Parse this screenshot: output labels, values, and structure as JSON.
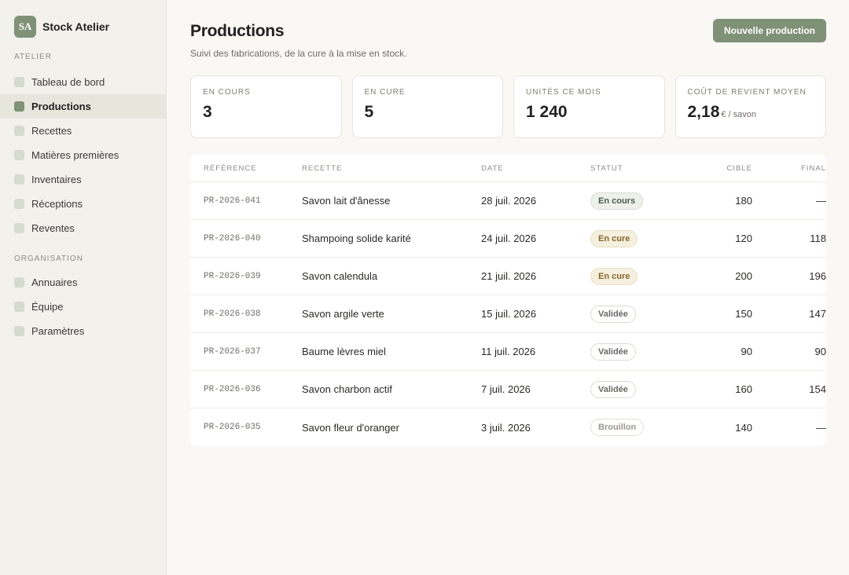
{
  "brand": {
    "logo": "SA",
    "name": "Stock Atelier"
  },
  "sidebar": {
    "sections": [
      {
        "label": "ATELIER",
        "items": [
          {
            "label": "Tableau de bord",
            "active": false
          },
          {
            "label": "Productions",
            "active": true
          },
          {
            "label": "Recettes",
            "active": false
          },
          {
            "label": "Matières premières",
            "active": false
          },
          {
            "label": "Inventaires",
            "active": false
          },
          {
            "label": "Réceptions",
            "active": false
          },
          {
            "label": "Reventes",
            "active": false
          }
        ]
      },
      {
        "label": "ORGANISATION",
        "items": [
          {
            "label": "Annuaires",
            "active": false
          },
          {
            "label": "Équipe",
            "active": false
          },
          {
            "label": "Paramètres",
            "active": false
          }
        ]
      }
    ]
  },
  "header": {
    "title": "Productions",
    "subtitle": "Suivi des fabrications, de la cure à la mise en stock.",
    "new_button": "Nouvelle production"
  },
  "stats": [
    {
      "label": "EN COURS",
      "value": "3",
      "unit": ""
    },
    {
      "label": "EN CURE",
      "value": "5",
      "unit": ""
    },
    {
      "label": "UNITÉS CE MOIS",
      "value": "1 240",
      "unit": ""
    },
    {
      "label": "COÛT DE REVIENT MOYEN",
      "value": "2,18",
      "unit": "€ / savon"
    }
  ],
  "table": {
    "headers": {
      "reference": "RÉFÉRENCE",
      "recette": "RECETTE",
      "date": "DATE",
      "statut": "STATUT",
      "cible": "CIBLE",
      "final": "FINAL"
    },
    "rows": [
      {
        "reference": "PR-2026-041",
        "recette": "Savon lait d'ânesse",
        "date": "28 juil. 2026",
        "statut": "En cours",
        "status_kind": "encours",
        "cible": "180",
        "final": "—"
      },
      {
        "reference": "PR-2026-040",
        "recette": "Shampoing solide karité",
        "date": "24 juil. 2026",
        "statut": "En cure",
        "status_kind": "encure",
        "cible": "120",
        "final": "118"
      },
      {
        "reference": "PR-2026-039",
        "recette": "Savon calendula",
        "date": "21 juil. 2026",
        "statut": "En cure",
        "status_kind": "encure",
        "cible": "200",
        "final": "196"
      },
      {
        "reference": "PR-2026-038",
        "recette": "Savon argile verte",
        "date": "15 juil. 2026",
        "statut": "Validée",
        "status_kind": "validee",
        "cible": "150",
        "final": "147"
      },
      {
        "reference": "PR-2026-037",
        "recette": "Baume lèvres miel",
        "date": "11 juil. 2026",
        "statut": "Validée",
        "status_kind": "validee",
        "cible": "90",
        "final": "90"
      },
      {
        "reference": "PR-2026-036",
        "recette": "Savon charbon actif",
        "date": "7 juil. 2026",
        "statut": "Validée",
        "status_kind": "validee",
        "cible": "160",
        "final": "154"
      },
      {
        "reference": "PR-2026-035",
        "recette": "Savon fleur d'oranger",
        "date": "3 juil. 2026",
        "statut": "Brouillon",
        "status_kind": "brouillon",
        "cible": "140",
        "final": "—"
      }
    ]
  },
  "colors": {
    "accent": "#7f9177",
    "sidebar_bg": "#f2f1ec",
    "page_bg": "#f9f8f5"
  }
}
